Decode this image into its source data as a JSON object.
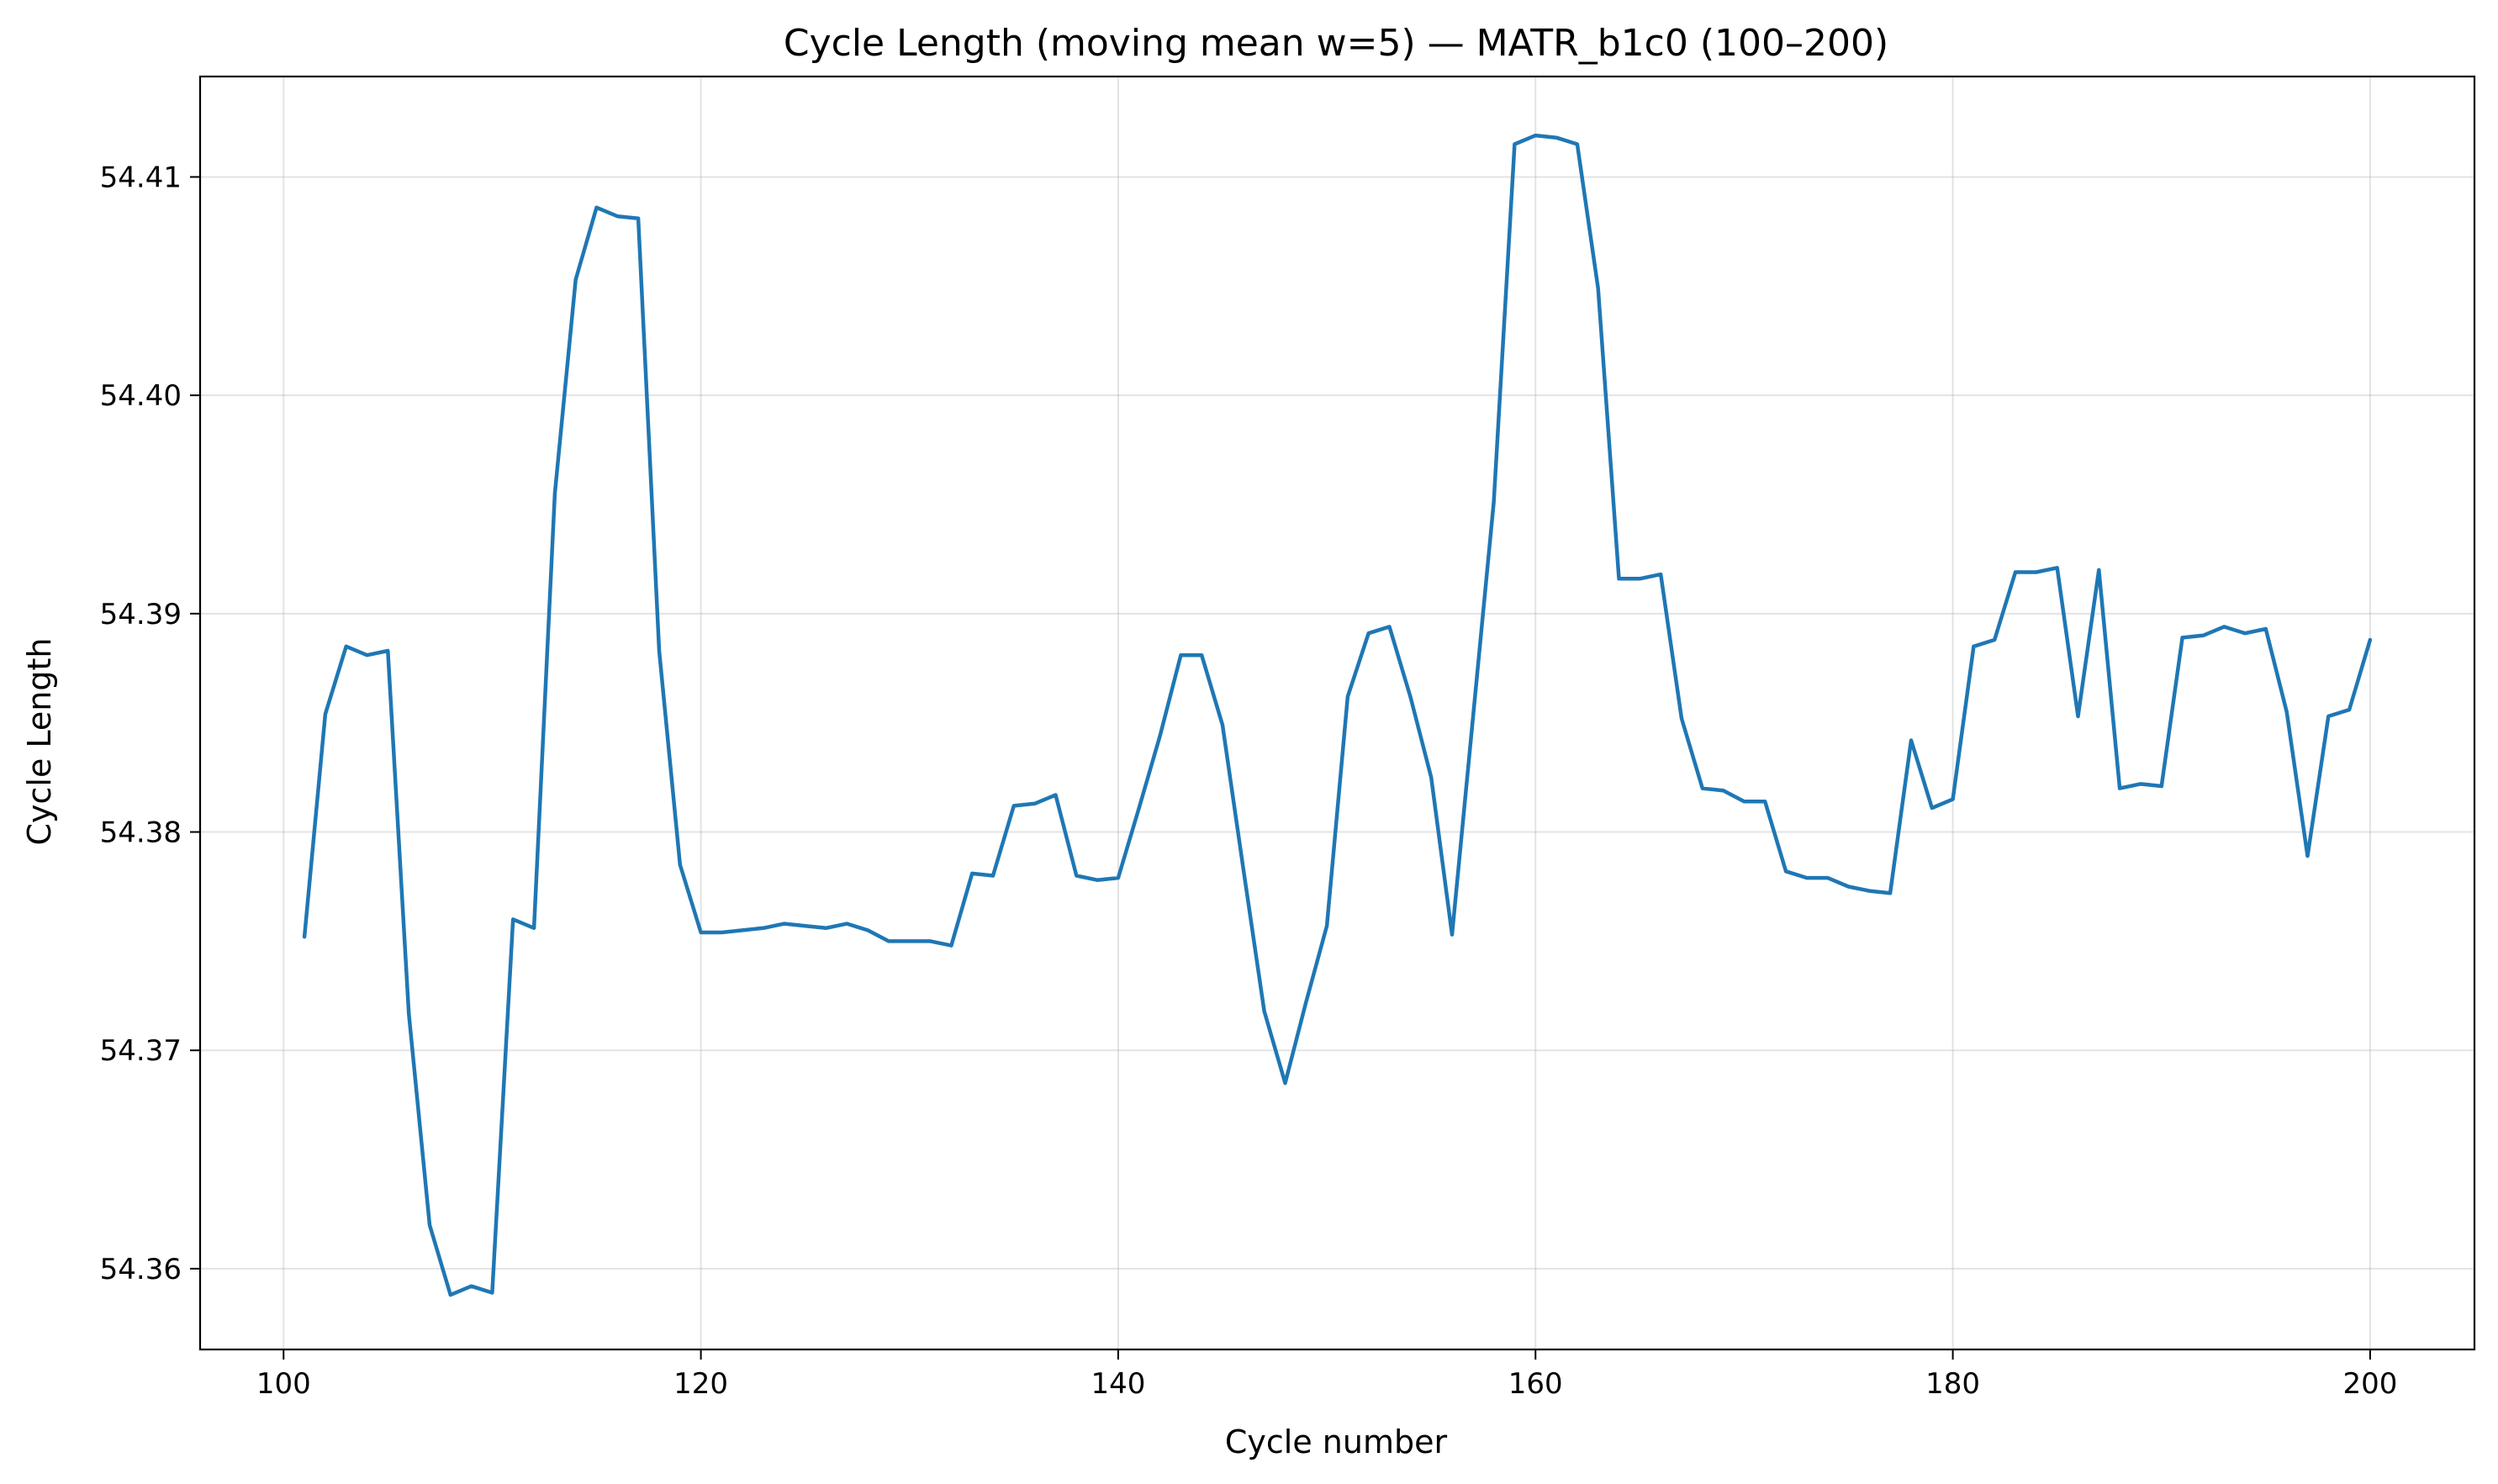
{
  "chart_data": {
    "type": "line",
    "title": "Cycle Length (moving mean w=5) — MATR_b1c0 (100–200)",
    "xlabel": "Cycle number",
    "ylabel": "Cycle Length",
    "xlim": [
      96,
      205
    ],
    "ylim": [
      54.3563,
      54.4146
    ],
    "xticks": [
      100,
      120,
      140,
      160,
      180,
      200
    ],
    "xtick_labels": [
      "100",
      "120",
      "140",
      "160",
      "180",
      "200"
    ],
    "yticks": [
      54.36,
      54.37,
      54.38,
      54.39,
      54.4,
      54.41
    ],
    "ytick_labels": [
      "54.36",
      "54.37",
      "54.38",
      "54.39",
      "54.40",
      "54.41"
    ],
    "grid": true,
    "series": [
      {
        "color": "#1f77b4",
        "x": [
          101,
          102,
          103,
          104,
          105,
          106,
          107,
          108,
          109,
          110,
          111,
          112,
          113,
          114,
          115,
          116,
          117,
          118,
          119,
          120,
          121,
          122,
          123,
          124,
          125,
          126,
          127,
          128,
          129,
          130,
          131,
          132,
          133,
          134,
          135,
          136,
          137,
          138,
          139,
          140,
          141,
          142,
          143,
          144,
          145,
          146,
          147,
          148,
          149,
          150,
          151,
          152,
          153,
          154,
          155,
          156,
          157,
          158,
          159,
          160,
          161,
          162,
          163,
          164,
          165,
          166,
          167,
          168,
          169,
          170,
          171,
          172,
          173,
          174,
          175,
          176,
          177,
          178,
          179,
          180,
          181,
          182,
          183,
          184,
          185,
          186,
          187,
          188,
          189,
          190,
          191,
          192,
          193,
          194,
          195,
          196,
          197,
          198,
          199,
          200
        ],
        "values": [
          54.3752,
          54.3854,
          54.3885,
          54.3881,
          54.3883,
          54.3717,
          54.362,
          54.3588,
          54.3592,
          54.3589,
          54.376,
          54.3756,
          54.3955,
          54.4053,
          54.4086,
          54.4082,
          54.4081,
          54.3883,
          54.3785,
          54.3754,
          54.3754,
          54.3755,
          54.3756,
          54.3758,
          54.3757,
          54.3756,
          54.3758,
          54.3755,
          54.375,
          54.375,
          54.375,
          54.3748,
          54.3781,
          54.378,
          54.3812,
          54.3813,
          54.3817,
          54.378,
          54.3778,
          54.3779,
          54.3811,
          54.3844,
          54.3881,
          54.3881,
          54.3849,
          54.3783,
          54.3718,
          54.3685,
          54.3722,
          54.3757,
          54.3862,
          54.3891,
          54.3894,
          54.3862,
          54.3825,
          54.3753,
          54.3852,
          54.3951,
          54.4115,
          54.4119,
          54.4118,
          54.4115,
          54.4049,
          54.3916,
          54.3916,
          54.3918,
          54.3852,
          54.382,
          54.3819,
          54.3814,
          54.3814,
          54.3782,
          54.3779,
          54.3779,
          54.3775,
          54.3773,
          54.3772,
          54.3842,
          54.3811,
          54.3815,
          54.3885,
          54.3888,
          54.3919,
          54.3919,
          54.3921,
          54.3853,
          54.392,
          54.382,
          54.3822,
          54.3821,
          54.3889,
          54.389,
          54.3894,
          54.3891,
          54.3893,
          54.3855,
          54.3789,
          54.3853,
          54.3856,
          54.3888
        ]
      }
    ]
  }
}
